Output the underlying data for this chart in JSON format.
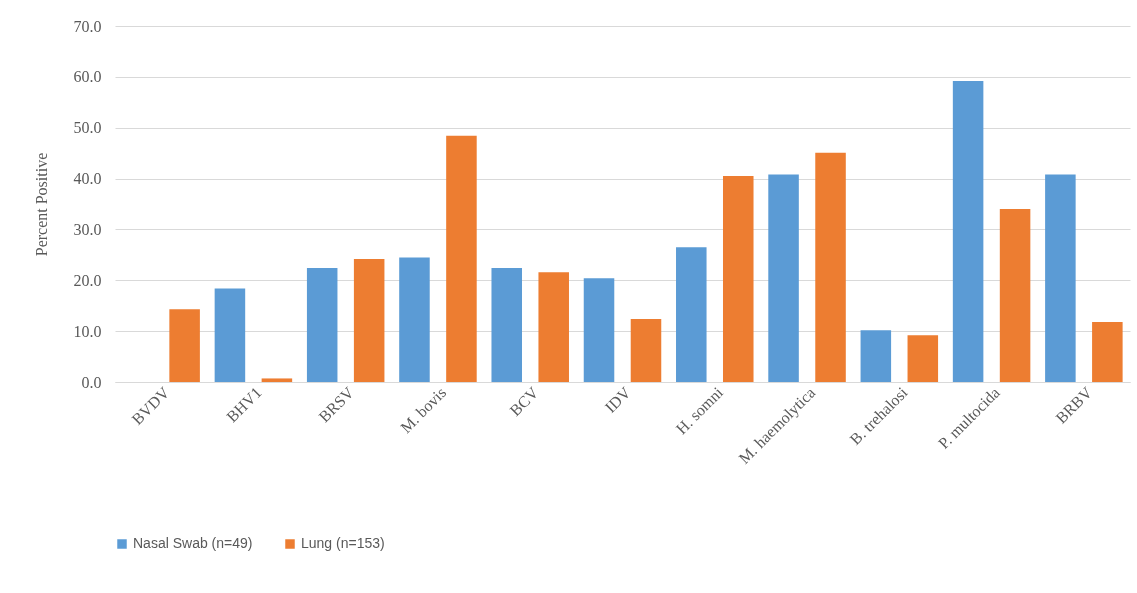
{
  "chart_data": {
    "type": "bar",
    "ylabel": "Percent Positive",
    "categories": [
      "BVDV",
      "BHV1",
      "BRSV",
      "M. bovis",
      "BCV",
      "IDV",
      "H. somni",
      "M. haemolytica",
      "B. trehalosi",
      "P. multocida",
      "BRBV"
    ],
    "series": [
      {
        "name": "Nasal Swab (n=49)",
        "color": "#5b9bd5",
        "values": [
          0,
          18.4,
          22.4,
          24.5,
          22.4,
          20.4,
          26.5,
          40.8,
          10.2,
          59.2,
          40.8
        ]
      },
      {
        "name": "Lung (n=153)",
        "color": "#ed7d31",
        "values": [
          14.3,
          0.7,
          24.2,
          48.4,
          21.6,
          12.4,
          40.5,
          45.1,
          9.2,
          34.0,
          11.8
        ]
      }
    ],
    "ylim": [
      0,
      70
    ],
    "yticks": [
      {
        "value": 0,
        "label": "0.0"
      },
      {
        "value": 10,
        "label": "10.0"
      },
      {
        "value": 20,
        "label": "20.0"
      },
      {
        "value": 30,
        "label": "30.0"
      },
      {
        "value": 40,
        "label": "40.0"
      },
      {
        "value": 50,
        "label": "50.0"
      },
      {
        "value": 60,
        "label": "60.0"
      },
      {
        "value": 70,
        "label": "70.0"
      }
    ],
    "grid": "y",
    "legend": "bottom"
  }
}
